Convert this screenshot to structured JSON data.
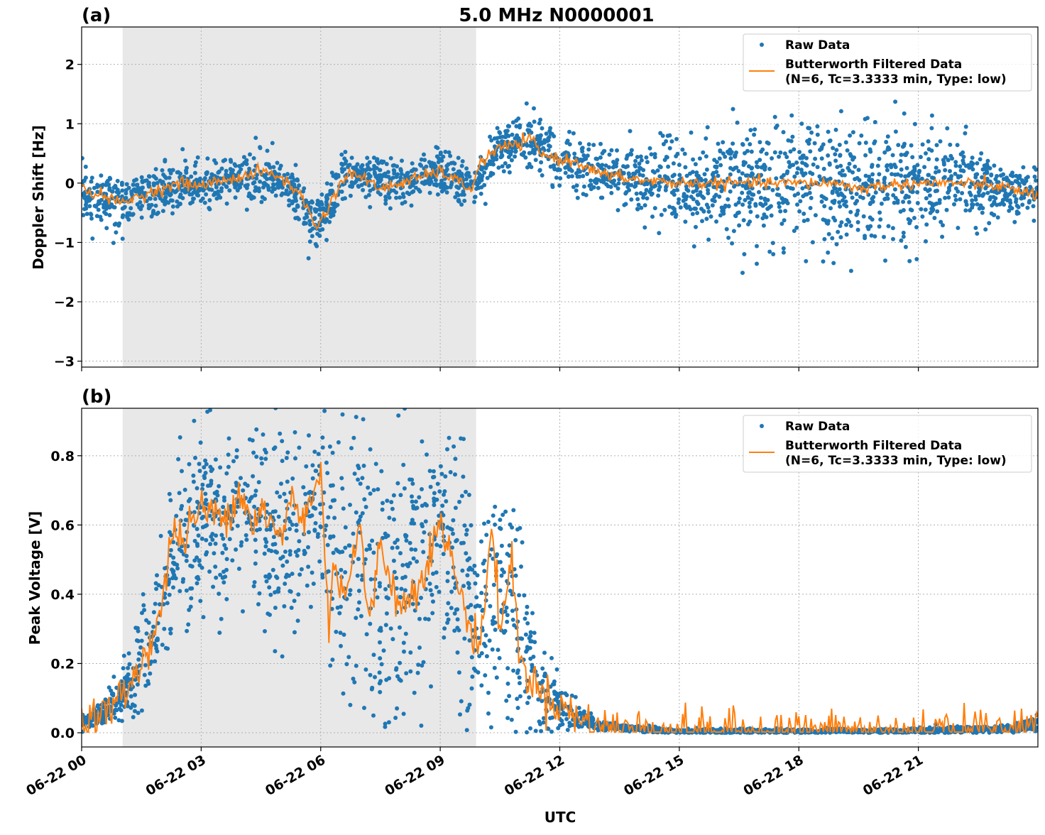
{
  "chart_data": [
    {
      "type": "scatter",
      "panel_label": "(a)",
      "title": "5.0 MHz N0000001",
      "xlabel": "",
      "ylabel": "Doppler Shift [Hz]",
      "xlim_hours_utc": [
        0,
        24
      ],
      "ylim": [
        -3.1,
        2.63
      ],
      "yticks": [
        2,
        1,
        0,
        -1,
        -2,
        -3
      ],
      "ytick_labels": [
        "2",
        "1",
        "0",
        "−1",
        "−2",
        "−3"
      ],
      "grid": true,
      "shaded_interval_hours": [
        1.03,
        9.9
      ],
      "shade_color": "#e8e8e8",
      "legend": {
        "placement": "top-right",
        "entries": [
          "Raw Data",
          "Butterworth Filtered Data\n(N=6, Tc=3.3333 min, Type: low)"
        ]
      },
      "legend_line1": "Raw Data",
      "legend_line2a": "Butterworth Filtered Data",
      "legend_line2b": "(N=6, Tc=3.3333 min, Type: low)",
      "series": [
        {
          "name": "Raw Data",
          "color": "#1f77b4",
          "style": "points",
          "x_hours": [
            0,
            1,
            2,
            3,
            4,
            5,
            5.9,
            6.5,
            7,
            8,
            9,
            9.8,
            10.5,
            11.3,
            12,
            13,
            14,
            15,
            16,
            17,
            18,
            19,
            20,
            21,
            22,
            23,
            24
          ],
          "center": [
            -0.15,
            -0.35,
            -0.1,
            -0.05,
            0.1,
            0.1,
            -0.75,
            0.0,
            0.1,
            0.0,
            0.2,
            -0.1,
            0.6,
            0.75,
            0.4,
            0.15,
            0.05,
            0,
            0,
            0,
            0,
            -0.05,
            -0.1,
            0,
            0,
            -0.1,
            -0.2
          ],
          "spread": [
            0.35,
            0.35,
            0.35,
            0.35,
            0.35,
            0.35,
            0.35,
            0.35,
            0.35,
            0.3,
            0.3,
            0.3,
            0.35,
            0.4,
            0.35,
            0.35,
            0.45,
            0.55,
            0.7,
            0.8,
            0.9,
            0.9,
            0.9,
            0.8,
            0.6,
            0.4,
            0.35
          ]
        },
        {
          "name": "Butterworth Filtered Data (N=6, Tc=3.3333 min, Type: low)",
          "color": "#ff7f0e",
          "style": "line",
          "x_hours": [
            0,
            0.5,
            1,
            1.5,
            2,
            2.5,
            3,
            3.5,
            4,
            4.5,
            5,
            5.5,
            5.9,
            6.2,
            6.5,
            6.8,
            7,
            7.5,
            8,
            8.5,
            9,
            9.5,
            9.8,
            10,
            10.5,
            11,
            11.3,
            11.5,
            12,
            12.5,
            13,
            13.5,
            14,
            15,
            16,
            17,
            18,
            19,
            19.5,
            20,
            21,
            22,
            23,
            24
          ],
          "y": [
            -0.1,
            -0.2,
            -0.35,
            -0.2,
            -0.1,
            0,
            -0.05,
            0.05,
            0.1,
            0.2,
            0.1,
            -0.2,
            -0.75,
            -0.4,
            0.0,
            0.2,
            0.1,
            -0.1,
            0.0,
            0.1,
            0.2,
            0.0,
            -0.1,
            0.35,
            0.6,
            0.65,
            0.75,
            0.5,
            0.4,
            0.35,
            0.15,
            0.1,
            0.05,
            0,
            0,
            0,
            0,
            0,
            -0.1,
            -0.05,
            0,
            0,
            -0.05,
            -0.2
          ]
        }
      ]
    },
    {
      "type": "scatter",
      "panel_label": "(b)",
      "title": "",
      "xlabel": "UTC",
      "ylabel": "Peak Voltage [V]",
      "xlim_hours_utc": [
        0,
        24
      ],
      "ylim": [
        -0.041,
        0.937
      ],
      "yticks": [
        0.8,
        0.6,
        0.4,
        0.2,
        0.0
      ],
      "ytick_labels": [
        "0.8",
        "0.6",
        "0.4",
        "0.2",
        "0.0"
      ],
      "xticks_hours": [
        0,
        3,
        6,
        9,
        12,
        15,
        18,
        21
      ],
      "xtick_labels": [
        "06-22 00",
        "06-22 03",
        "06-22 06",
        "06-22 09",
        "06-22 12",
        "06-22 15",
        "06-22 18",
        "06-22 21"
      ],
      "grid": true,
      "shaded_interval_hours": [
        1.03,
        9.9
      ],
      "legend": {
        "placement": "top-right",
        "entries": [
          "Raw Data",
          "Butterworth Filtered Data\n(N=6, Tc=3.3333 min, Type: low)"
        ]
      },
      "legend_line1": "Raw Data",
      "legend_line2a": "Butterworth Filtered Data",
      "legend_line2b": "(N=6, Tc=3.3333 min, Type: low)",
      "series": [
        {
          "name": "Raw Data",
          "color": "#1f77b4",
          "style": "points",
          "x_hours": [
            0,
            0.5,
            1,
            1.5,
            2,
            2.5,
            3,
            3.5,
            4,
            4.5,
            5,
            5.5,
            6,
            6.3,
            6.6,
            7,
            7.5,
            8,
            8.5,
            9,
            9.3,
            9.6,
            10,
            10.5,
            11,
            11.5,
            12,
            12.5,
            13,
            14,
            15,
            20,
            23,
            23.5,
            24
          ],
          "center": [
            0.03,
            0.05,
            0.1,
            0.2,
            0.35,
            0.55,
            0.62,
            0.62,
            0.66,
            0.6,
            0.55,
            0.6,
            0.7,
            0.5,
            0.45,
            0.55,
            0.45,
            0.4,
            0.5,
            0.6,
            0.5,
            0.4,
            0.3,
            0.4,
            0.3,
            0.12,
            0.08,
            0.04,
            0.02,
            0.01,
            0.005,
            0.005,
            0.01,
            0.015,
            0.03
          ],
          "spread": [
            0.02,
            0.03,
            0.06,
            0.12,
            0.18,
            0.22,
            0.22,
            0.22,
            0.2,
            0.22,
            0.25,
            0.25,
            0.22,
            0.3,
            0.35,
            0.3,
            0.35,
            0.3,
            0.3,
            0.25,
            0.3,
            0.3,
            0.2,
            0.3,
            0.25,
            0.1,
            0.06,
            0.03,
            0.01,
            0.008,
            0.005,
            0.005,
            0.008,
            0.01,
            0.02
          ]
        },
        {
          "name": "Butterworth Filtered Data (N=6, Tc=3.3333 min, Type: low)",
          "color": "#ff7f0e",
          "style": "line",
          "x_hours": [
            0,
            0.5,
            1,
            1.5,
            2,
            2.3,
            2.5,
            3,
            3.5,
            4,
            4.3,
            4.5,
            5,
            5.3,
            5.5,
            6,
            6.2,
            6.3,
            6.6,
            7,
            7.2,
            7.5,
            8,
            8.5,
            9,
            9.3,
            9.6,
            10,
            10.3,
            10.5,
            10.8,
            11,
            11.5,
            12,
            12.5,
            13,
            14,
            15,
            18,
            21,
            23,
            23.5,
            24
          ],
          "y": [
            0.03,
            0.05,
            0.1,
            0.2,
            0.35,
            0.6,
            0.55,
            0.65,
            0.62,
            0.7,
            0.6,
            0.65,
            0.55,
            0.7,
            0.6,
            0.75,
            0.3,
            0.5,
            0.4,
            0.6,
            0.3,
            0.55,
            0.35,
            0.45,
            0.6,
            0.5,
            0.35,
            0.25,
            0.6,
            0.3,
            0.5,
            0.2,
            0.12,
            0.08,
            0.04,
            0.02,
            0.01,
            0.005,
            0.004,
            0.004,
            0.01,
            0.015,
            0.03
          ]
        }
      ]
    }
  ]
}
